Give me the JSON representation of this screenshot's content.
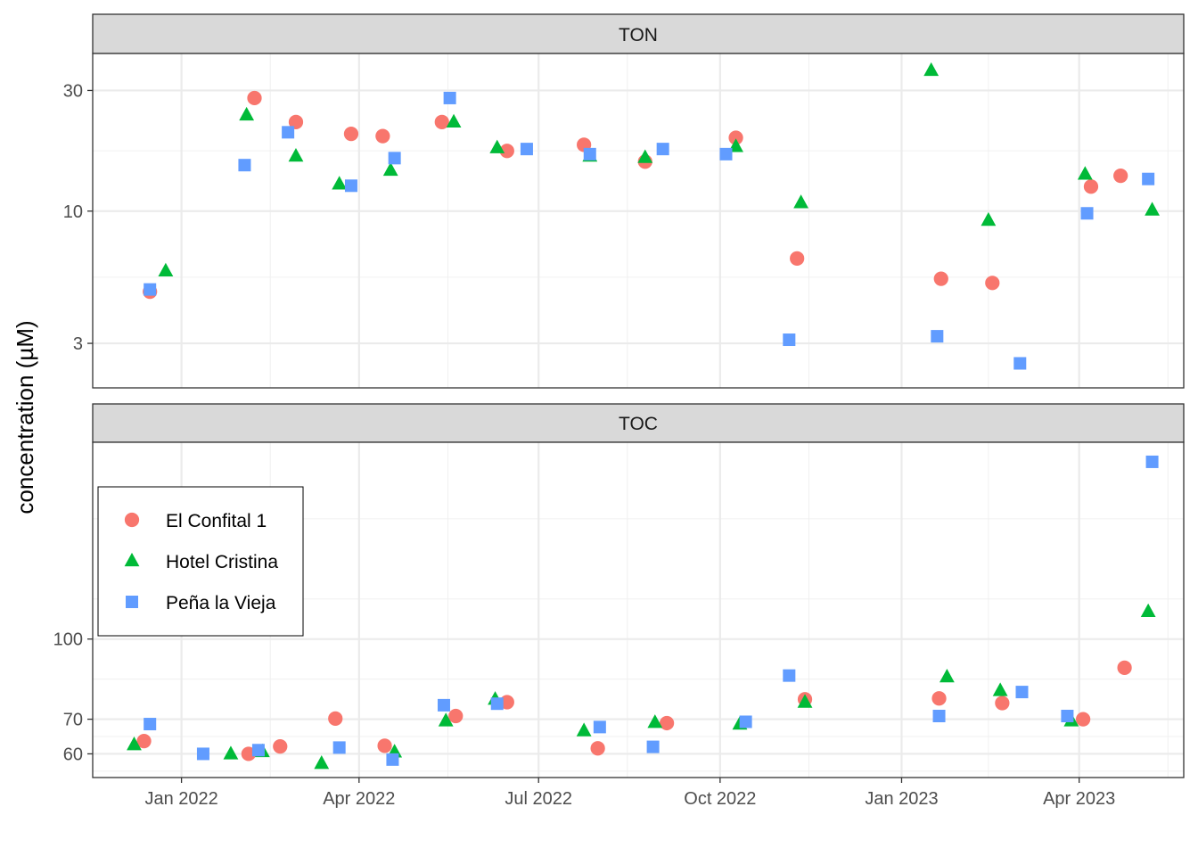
{
  "chart_data": {
    "type": "scatter",
    "ylabel": "concentration (µM)",
    "xlabel": "",
    "x_ticks": [
      {
        "date": "2022-01-01",
        "label": "Jan 2022"
      },
      {
        "date": "2022-04-01",
        "label": "Apr 2022"
      },
      {
        "date": "2022-07-01",
        "label": "Jul 2022"
      },
      {
        "date": "2022-10-01",
        "label": "Oct 2022"
      },
      {
        "date": "2023-01-01",
        "label": "Jan 2023"
      },
      {
        "date": "2023-04-01",
        "label": "Apr 2023"
      }
    ],
    "xlim": [
      "2021-11-17",
      "2023-05-24"
    ],
    "legend": {
      "placement": "inside-left-lower-panel",
      "items": [
        {
          "name": "El Confital 1",
          "shape": "circle",
          "color": "#F8766D"
        },
        {
          "name": "Hotel Cristina",
          "shape": "triangle",
          "color": "#00BA38"
        },
        {
          "name": "Peña la Vieja",
          "shape": "square",
          "color": "#619CFF"
        }
      ]
    },
    "panels": [
      {
        "title": "TON",
        "scale": "log",
        "ylim": [
          2.0,
          42
        ],
        "y_ticks": [
          {
            "value": 3,
            "label": "3"
          },
          {
            "value": 10,
            "label": "10"
          },
          {
            "value": 30,
            "label": "30"
          }
        ],
        "series": [
          {
            "name": "El Confital 1",
            "points": [
              [
                "2021-12-16",
                4.8
              ],
              [
                "2022-02-07",
                28.0
              ],
              [
                "2022-02-28",
                22.5
              ],
              [
                "2022-03-28",
                20.2
              ],
              [
                "2022-04-13",
                19.8
              ],
              [
                "2022-05-13",
                22.5
              ],
              [
                "2022-06-15",
                17.3
              ],
              [
                "2022-07-24",
                18.3
              ],
              [
                "2022-08-24",
                15.7
              ],
              [
                "2022-10-09",
                19.5
              ],
              [
                "2022-11-09",
                6.5
              ],
              [
                "2023-01-21",
                5.4
              ],
              [
                "2023-02-16",
                5.2
              ],
              [
                "2023-04-07",
                12.5
              ],
              [
                "2023-04-22",
                13.8
              ]
            ]
          },
          {
            "name": "Hotel Cristina",
            "points": [
              [
                "2021-12-24",
                5.8
              ],
              [
                "2022-02-03",
                24.0
              ],
              [
                "2022-02-28",
                16.5
              ],
              [
                "2022-03-22",
                12.8
              ],
              [
                "2022-04-17",
                14.5
              ],
              [
                "2022-05-19",
                22.5
              ],
              [
                "2022-06-10",
                17.8
              ],
              [
                "2022-07-27",
                16.5
              ],
              [
                "2022-08-24",
                16.3
              ],
              [
                "2022-10-09",
                18.0
              ],
              [
                "2022-11-11",
                10.8
              ],
              [
                "2023-01-16",
                36.0
              ],
              [
                "2023-02-14",
                9.2
              ],
              [
                "2023-04-04",
                14.0
              ],
              [
                "2023-05-08",
                10.1
              ]
            ]
          },
          {
            "name": "Peña la Vieja",
            "points": [
              [
                "2021-12-16",
                4.9
              ],
              [
                "2022-02-02",
                15.2
              ],
              [
                "2022-02-24",
                20.5
              ],
              [
                "2022-03-28",
                12.6
              ],
              [
                "2022-04-19",
                16.2
              ],
              [
                "2022-05-17",
                28.0
              ],
              [
                "2022-06-25",
                17.6
              ],
              [
                "2022-07-27",
                16.8
              ],
              [
                "2022-09-02",
                17.6
              ],
              [
                "2022-10-04",
                16.8
              ],
              [
                "2022-11-05",
                3.1
              ],
              [
                "2023-01-19",
                3.2
              ],
              [
                "2023-03-02",
                2.5
              ],
              [
                "2023-04-05",
                9.8
              ],
              [
                "2023-05-06",
                13.4
              ]
            ]
          }
        ]
      },
      {
        "title": "TOC",
        "scale": "log",
        "ylim": [
          54,
          240
        ],
        "y_ticks": [
          {
            "value": 60,
            "label": "60"
          },
          {
            "value": 70,
            "label": "70"
          },
          {
            "value": 100,
            "label": "100"
          }
        ],
        "series": [
          {
            "name": "El Confital 1",
            "points": [
              [
                "2021-12-13",
                63.5
              ],
              [
                "2022-02-04",
                60.0
              ],
              [
                "2022-02-20",
                62.0
              ],
              [
                "2022-03-20",
                70.2
              ],
              [
                "2022-04-14",
                62.2
              ],
              [
                "2022-05-20",
                71.0
              ],
              [
                "2022-06-15",
                75.5
              ],
              [
                "2022-07-31",
                61.5
              ],
              [
                "2022-09-04",
                68.8
              ],
              [
                "2022-11-13",
                76.5
              ],
              [
                "2023-01-20",
                76.8
              ],
              [
                "2023-02-21",
                75.2
              ],
              [
                "2023-04-03",
                70.0
              ],
              [
                "2023-04-24",
                88.0
              ]
            ]
          },
          {
            "name": "Hotel Cristina",
            "points": [
              [
                "2021-12-08",
                62.5
              ],
              [
                "2022-01-26",
                60.0
              ],
              [
                "2022-02-11",
                60.6
              ],
              [
                "2022-03-13",
                57.5
              ],
              [
                "2022-04-19",
                60.5
              ],
              [
                "2022-05-15",
                69.5
              ],
              [
                "2022-06-09",
                76.5
              ],
              [
                "2022-07-24",
                66.5
              ],
              [
                "2022-08-29",
                69.0
              ],
              [
                "2022-10-11",
                68.5
              ],
              [
                "2022-11-13",
                75.5
              ],
              [
                "2023-01-24",
                84.5
              ],
              [
                "2023-02-20",
                79.5
              ],
              [
                "2023-03-28",
                69.5
              ],
              [
                "2023-05-06",
                113.0
              ]
            ]
          },
          {
            "name": "Peña la Vieja",
            "points": [
              [
                "2021-12-16",
                68.5
              ],
              [
                "2022-01-12",
                60.0
              ],
              [
                "2022-02-09",
                61.0
              ],
              [
                "2022-03-22",
                61.7
              ],
              [
                "2022-04-18",
                58.5
              ],
              [
                "2022-05-14",
                74.5
              ],
              [
                "2022-06-10",
                75.0
              ],
              [
                "2022-08-01",
                67.6
              ],
              [
                "2022-08-28",
                61.9
              ],
              [
                "2022-10-14",
                69.2
              ],
              [
                "2022-11-05",
                85.0
              ],
              [
                "2023-01-20",
                71.0
              ],
              [
                "2023-03-03",
                79.0
              ],
              [
                "2023-03-26",
                71.0
              ],
              [
                "2023-05-08",
                220.0
              ]
            ]
          }
        ]
      }
    ]
  }
}
